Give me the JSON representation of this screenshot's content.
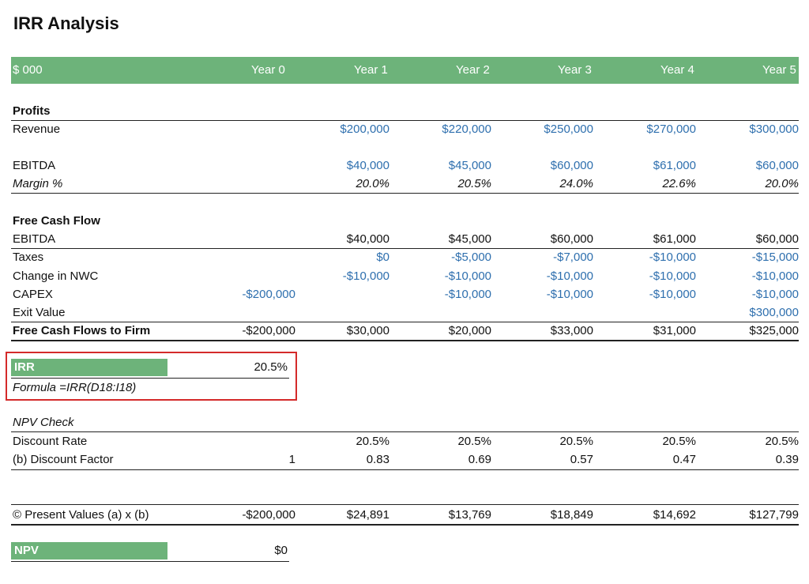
{
  "title": "IRR Analysis",
  "header": {
    "label": "$ 000",
    "years": [
      "Year 0",
      "Year 1",
      "Year 2",
      "Year 3",
      "Year 4",
      "Year 5"
    ]
  },
  "profits": {
    "section": "Profits",
    "revenue": {
      "label": "Revenue",
      "values": [
        "",
        "$200,000",
        "$220,000",
        "$250,000",
        "$270,000",
        "$300,000"
      ]
    },
    "ebitda": {
      "label": "EBITDA",
      "values": [
        "",
        "$40,000",
        "$45,000",
        "$60,000",
        "$61,000",
        "$60,000"
      ]
    },
    "margin": {
      "label": "Margin %",
      "values": [
        "",
        "20.0%",
        "20.5%",
        "24.0%",
        "22.6%",
        "20.0%"
      ]
    }
  },
  "fcf": {
    "section": "Free Cash Flow",
    "ebitda": {
      "label": "EBITDA",
      "values": [
        "",
        "$40,000",
        "$45,000",
        "$60,000",
        "$61,000",
        "$60,000"
      ]
    },
    "taxes": {
      "label": "Taxes",
      "values": [
        "",
        "$0",
        "-$5,000",
        "-$7,000",
        "-$10,000",
        "-$15,000"
      ]
    },
    "nwc": {
      "label": "Change in NWC",
      "values": [
        "",
        "-$10,000",
        "-$10,000",
        "-$10,000",
        "-$10,000",
        "-$10,000"
      ]
    },
    "capex": {
      "label": "CAPEX",
      "values": [
        "-$200,000",
        "",
        "-$10,000",
        "-$10,000",
        "-$10,000",
        "-$10,000"
      ]
    },
    "exit": {
      "label": "Exit Value",
      "values": [
        "",
        "",
        "",
        "",
        "",
        "$300,000"
      ]
    },
    "total": {
      "label": "Free Cash Flows to Firm",
      "values": [
        "-$200,000",
        "$30,000",
        "$20,000",
        "$33,000",
        "$31,000",
        "$325,000"
      ]
    }
  },
  "irr": {
    "label": "IRR",
    "value": "20.5%",
    "formula": "Formula =IRR(D18:I18)"
  },
  "npv_check": {
    "section": "NPV Check",
    "rate": {
      "label": "Discount Rate",
      "values": [
        "",
        "20.5%",
        "20.5%",
        "20.5%",
        "20.5%",
        "20.5%"
      ]
    },
    "factor": {
      "label": "(b) Discount Factor",
      "values": [
        "1",
        "0.83",
        "0.69",
        "0.57",
        "0.47",
        "0.39"
      ]
    },
    "pv": {
      "label": "© Present Values (a) x (b)",
      "values": [
        "-$200,000",
        "$24,891",
        "$13,769",
        "$18,849",
        "$14,692",
        "$127,799"
      ]
    }
  },
  "npv": {
    "label": "NPV",
    "value": "$0"
  }
}
